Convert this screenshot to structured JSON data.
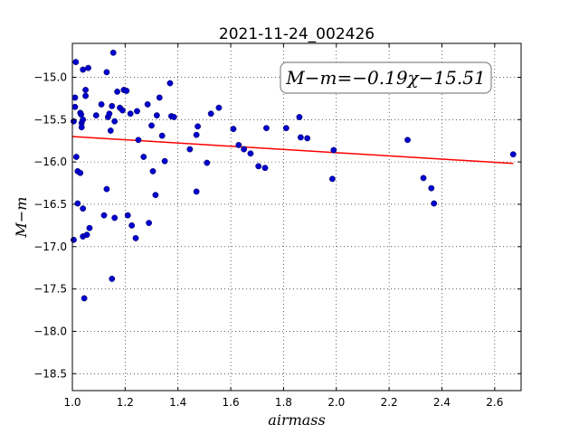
{
  "chart_data": {
    "type": "scatter",
    "title": "2021-11-24_002426",
    "xlabel": "airmass",
    "ylabel": "M−m",
    "xlim": [
      1.0,
      2.7
    ],
    "ylim": [
      -18.7,
      -14.6
    ],
    "x_ticks": [
      "1.0",
      "1.2",
      "1.4",
      "1.6",
      "1.8",
      "2.0",
      "2.2",
      "2.4",
      "2.6"
    ],
    "y_ticks": [
      "−15.0",
      "−15.5",
      "−16.0",
      "−16.5",
      "−17.0",
      "−17.5",
      "−18.0",
      "−18.5"
    ],
    "grid": true,
    "annotation": "M−m=−0.19χ−15.51",
    "fit": {
      "slope": -0.19,
      "intercept": -15.51,
      "x_range": [
        1.0,
        2.67
      ],
      "color": "#ff0000"
    },
    "point_color": "#0000cc",
    "points": [
      [
        1.005,
        -15.52
      ],
      [
        1.005,
        -16.92
      ],
      [
        1.01,
        -15.35
      ],
      [
        1.01,
        -15.24
      ],
      [
        1.013,
        -14.82
      ],
      [
        1.015,
        -15.94
      ],
      [
        1.02,
        -16.11
      ],
      [
        1.02,
        -16.49
      ],
      [
        1.03,
        -16.13
      ],
      [
        1.03,
        -15.42
      ],
      [
        1.033,
        -15.44
      ],
      [
        1.035,
        -15.54
      ],
      [
        1.035,
        -15.59
      ],
      [
        1.04,
        -15.5
      ],
      [
        1.04,
        -16.55
      ],
      [
        1.04,
        -16.88
      ],
      [
        1.04,
        -14.91
      ],
      [
        1.045,
        -17.61
      ],
      [
        1.05,
        -15.15
      ],
      [
        1.05,
        -15.22
      ],
      [
        1.055,
        -16.86
      ],
      [
        1.06,
        -14.89
      ],
      [
        1.065,
        -16.78
      ],
      [
        1.09,
        -15.45
      ],
      [
        1.11,
        -15.32
      ],
      [
        1.12,
        -16.63
      ],
      [
        1.13,
        -14.94
      ],
      [
        1.13,
        -16.32
      ],
      [
        1.135,
        -15.47
      ],
      [
        1.14,
        -15.43
      ],
      [
        1.145,
        -15.63
      ],
      [
        1.15,
        -17.38
      ],
      [
        1.15,
        -15.34
      ],
      [
        1.155,
        -14.71
      ],
      [
        1.16,
        -15.52
      ],
      [
        1.16,
        -16.66
      ],
      [
        1.17,
        -15.17
      ],
      [
        1.18,
        -15.36
      ],
      [
        1.19,
        -15.39
      ],
      [
        1.195,
        -15.15
      ],
      [
        1.205,
        -15.16
      ],
      [
        1.21,
        -16.63
      ],
      [
        1.22,
        -15.43
      ],
      [
        1.225,
        -16.75
      ],
      [
        1.24,
        -16.9
      ],
      [
        1.245,
        -15.4
      ],
      [
        1.25,
        -15.74
      ],
      [
        1.27,
        -15.94
      ],
      [
        1.285,
        -15.32
      ],
      [
        1.29,
        -16.72
      ],
      [
        1.3,
        -15.57
      ],
      [
        1.305,
        -16.11
      ],
      [
        1.315,
        -16.39
      ],
      [
        1.32,
        -15.45
      ],
      [
        1.33,
        -15.24
      ],
      [
        1.34,
        -15.69
      ],
      [
        1.35,
        -15.99
      ],
      [
        1.37,
        -15.07
      ],
      [
        1.375,
        -15.46
      ],
      [
        1.385,
        -15.47
      ],
      [
        1.445,
        -15.85
      ],
      [
        1.47,
        -15.68
      ],
      [
        1.47,
        -16.35
      ],
      [
        1.475,
        -15.58
      ],
      [
        1.51,
        -16.01
      ],
      [
        1.525,
        -15.43
      ],
      [
        1.555,
        -15.36
      ],
      [
        1.61,
        -15.61
      ],
      [
        1.63,
        -15.8
      ],
      [
        1.65,
        -15.85
      ],
      [
        1.675,
        -15.9
      ],
      [
        1.705,
        -16.05
      ],
      [
        1.73,
        -16.07
      ],
      [
        1.735,
        -15.6
      ],
      [
        1.81,
        -15.6
      ],
      [
        1.86,
        -15.47
      ],
      [
        1.865,
        -15.71
      ],
      [
        1.89,
        -15.72
      ],
      [
        1.985,
        -16.2
      ],
      [
        1.99,
        -15.86
      ],
      [
        2.27,
        -15.74
      ],
      [
        2.33,
        -16.19
      ],
      [
        2.36,
        -16.31
      ],
      [
        2.37,
        -16.49
      ],
      [
        2.67,
        -15.91
      ]
    ]
  }
}
